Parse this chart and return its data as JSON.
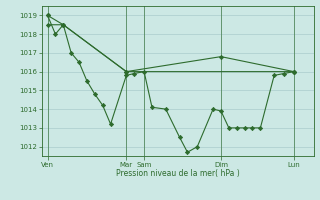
{
  "bg_color": "#cce8e4",
  "grid_color": "#aacccc",
  "line_color": "#2d6b2d",
  "ylabel_text": "Pression niveau de la mer( hPa )",
  "ylim": [
    1011.5,
    1019.5
  ],
  "yticks": [
    1012,
    1013,
    1014,
    1015,
    1016,
    1017,
    1018,
    1019
  ],
  "xtick_labels": [
    "Ven",
    "Mar",
    "Sam",
    "Dim",
    "Lun"
  ],
  "xtick_positions": [
    0.0,
    4.0,
    4.9,
    8.8,
    12.5
  ],
  "xmax": 13.5,
  "line1_x": [
    0.0,
    0.4,
    0.8,
    1.2,
    1.6,
    2.0,
    2.4,
    2.8,
    3.2,
    4.0,
    4.4,
    4.9,
    5.3,
    6.0,
    6.7,
    7.1,
    7.6,
    8.4,
    8.8,
    9.2,
    9.6,
    10.0,
    10.4,
    10.8,
    11.5,
    12.0,
    12.5
  ],
  "line1_y": [
    1019.0,
    1018.0,
    1018.5,
    1017.0,
    1016.5,
    1015.5,
    1014.8,
    1014.2,
    1013.2,
    1015.8,
    1015.9,
    1016.0,
    1014.1,
    1014.0,
    1012.5,
    1011.7,
    1012.0,
    1014.0,
    1013.9,
    1013.0,
    1013.0,
    1013.0,
    1013.0,
    1013.0,
    1015.8,
    1015.9,
    1016.0
  ],
  "line2_x": [
    0.0,
    0.8,
    4.0,
    12.5
  ],
  "line2_y": [
    1019.0,
    1018.5,
    1016.0,
    1016.0
  ],
  "line3_x": [
    0.0,
    0.8,
    4.0,
    8.8,
    12.5
  ],
  "line3_y": [
    1018.5,
    1018.5,
    1016.0,
    1016.8,
    1016.0
  ]
}
